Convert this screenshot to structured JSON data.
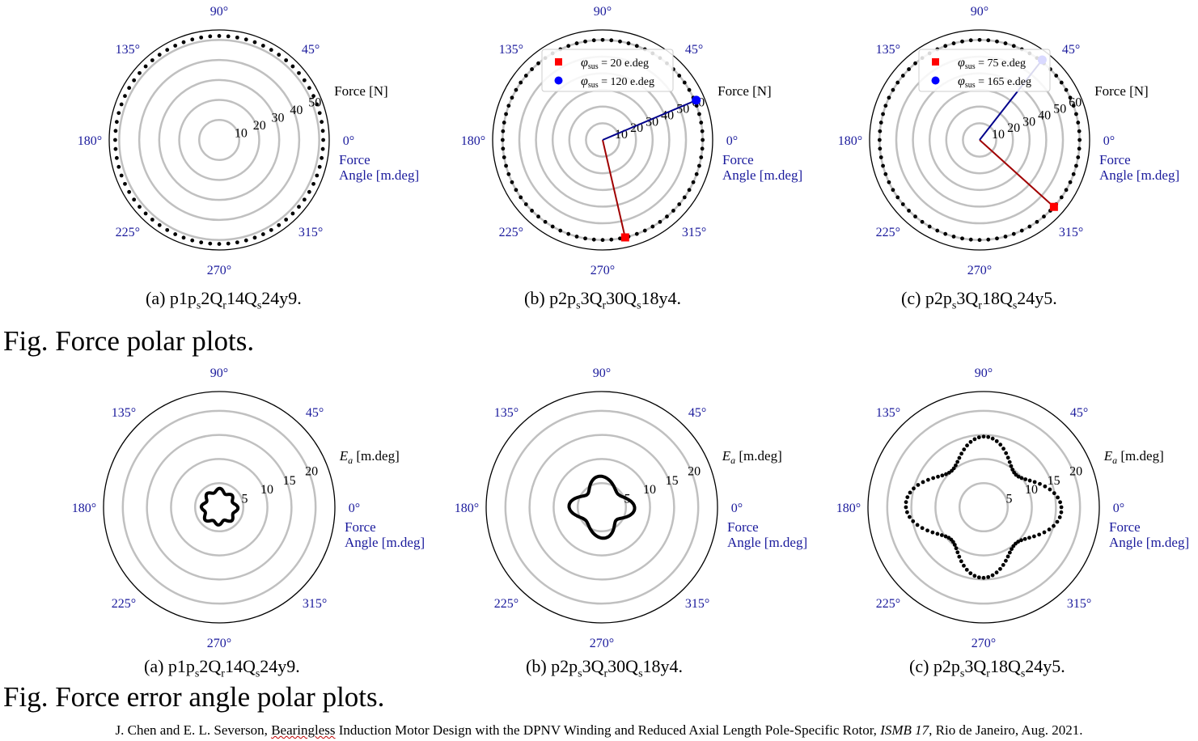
{
  "figure_titles": {
    "force": "Fig. Force polar plots.",
    "error": "Fig. Force error angle polar plots."
  },
  "captions": {
    "a": {
      "prefix": "(a) p1p",
      "sub1": "s",
      "mid1": "2Q",
      "sub2": "r",
      "mid2": "14Q",
      "sub3": "s",
      "tail": "24y9."
    },
    "b": {
      "prefix": "(b) p2p",
      "sub1": "s",
      "mid1": "3Q",
      "sub2": "r",
      "mid2": "30Q",
      "sub3": "s",
      "tail": "18y4."
    },
    "c": {
      "prefix": "(c) p2p",
      "sub1": "s",
      "mid1": "3Q",
      "sub2": "r",
      "mid2": "18Q",
      "sub3": "s",
      "tail": "24y5."
    }
  },
  "credit": {
    "part1": "J. Chen and E. L. Severson, ",
    "underlined": "Bearingless",
    "part2": " Induction Motor Design with the DPNV Winding and Reduced Axial Length Pole-Specific Rotor, ",
    "venue": "ISMB 17",
    "part3": ", Rio de Janeiro, Aug. 2021."
  },
  "colors": {
    "angle_label": "#1a1a9c",
    "grid": "#c0c0c0",
    "points": "#000000",
    "arrow_red": "#a00000",
    "marker_red": "#ff0000",
    "arrow_blue": "#00008b",
    "marker_blue": "#0000ff"
  },
  "chart_data": [
    {
      "type": "scatter",
      "projection": "polar",
      "panel": "force-a",
      "theta_label": [
        "Force",
        "Angle [m.deg]"
      ],
      "r_label": "Force [N]",
      "angle_ticks": [
        "0°",
        "45°",
        "90°",
        "135°",
        "180°",
        "225°",
        "270°",
        "315°"
      ],
      "r_ticks": [
        10,
        20,
        30,
        40,
        50
      ],
      "rlim": [
        0,
        55
      ],
      "r_label_angle_deg": 22.5,
      "grid": true,
      "series": [
        {
          "r_const": 52,
          "n_points": 72,
          "style": "dots"
        }
      ]
    },
    {
      "type": "scatter",
      "projection": "polar",
      "panel": "force-b",
      "theta_label": [
        "Force",
        "Angle [m.deg]"
      ],
      "r_label": "Force [N]",
      "angle_ticks": [
        "0°",
        "45°",
        "90°",
        "135°",
        "180°",
        "225°",
        "270°",
        "315°"
      ],
      "r_ticks": [
        10,
        20,
        30,
        40,
        50,
        60
      ],
      "rlim": [
        0,
        66
      ],
      "r_label_angle_deg": 22.5,
      "grid": true,
      "legend": "upper-center",
      "series": [
        {
          "r_const": 60,
          "n_points": 72,
          "style": "dots"
        }
      ],
      "vectors": [
        {
          "label_symbol": "φ",
          "label_sub": "sus",
          "label_value": "= 20 e.deg",
          "angle_deg": -77,
          "r": 60,
          "marker": "square",
          "color": "red"
        },
        {
          "label_symbol": "φ",
          "label_sub": "sus",
          "label_value": "= 120 e.deg",
          "angle_deg": 23,
          "r": 61,
          "marker": "circle",
          "color": "blue"
        }
      ]
    },
    {
      "type": "scatter",
      "projection": "polar",
      "panel": "force-c",
      "theta_label": [
        "Force",
        "Angle [m.deg]"
      ],
      "r_label": "Force [N]",
      "angle_ticks": [
        "0°",
        "45°",
        "90°",
        "135°",
        "180°",
        "225°",
        "270°",
        "315°"
      ],
      "r_ticks": [
        10,
        20,
        30,
        40,
        50,
        60
      ],
      "rlim": [
        0,
        66
      ],
      "r_label_angle_deg": 22.5,
      "grid": true,
      "legend": "upper-center",
      "series": [
        {
          "r_const": 60,
          "n_points": 72,
          "style": "dots"
        }
      ],
      "vectors": [
        {
          "label_symbol": "φ",
          "label_sub": "sus",
          "label_value": "= 75 e.deg",
          "angle_deg": -42,
          "r": 60,
          "marker": "square",
          "color": "red"
        },
        {
          "label_symbol": "φ",
          "label_sub": "sus",
          "label_value": "= 165 e.deg",
          "angle_deg": 52,
          "r": 61,
          "marker": "circle",
          "color": "blue"
        }
      ]
    },
    {
      "type": "line",
      "projection": "polar",
      "panel": "error-a",
      "theta_label": [
        "Force",
        "Angle [m.deg]"
      ],
      "r_label_symbol": "E",
      "r_label_sub": "a",
      "r_label_unit": " [m.deg]",
      "angle_ticks": [
        "0°",
        "45°",
        "90°",
        "135°",
        "180°",
        "225°",
        "270°",
        "315°"
      ],
      "r_ticks": [
        5,
        10,
        15,
        20
      ],
      "rlim": [
        0,
        24
      ],
      "r_label_angle_deg": 22.5,
      "grid": true,
      "series": [
        {
          "r_base": 3.4,
          "harmonics": [
            [
              8,
              0.4,
              0.3
            ],
            [
              3,
              0.15,
              1.0
            ]
          ],
          "style": "thick-line"
        }
      ]
    },
    {
      "type": "line",
      "projection": "polar",
      "panel": "error-b",
      "theta_label": [
        "Force",
        "Angle [m.deg]"
      ],
      "r_label_symbol": "E",
      "r_label_sub": "a",
      "r_label_unit": " [m.deg]",
      "angle_ticks": [
        "0°",
        "45°",
        "90°",
        "135°",
        "180°",
        "225°",
        "270°",
        "315°"
      ],
      "r_ticks": [
        5,
        10,
        15,
        20
      ],
      "rlim": [
        0,
        24
      ],
      "r_label_angle_deg": 22.5,
      "grid": true,
      "series": [
        {
          "r_base": 5.4,
          "harmonics": [
            [
              4,
              1.2,
              0.0
            ],
            [
              6,
              0.25,
              0.7
            ]
          ],
          "style": "thick-line"
        }
      ]
    },
    {
      "type": "scatter",
      "projection": "polar",
      "panel": "error-c",
      "theta_label": [
        "Force",
        "Angle [m.deg]"
      ],
      "r_label_symbol": "E",
      "r_label_sub": "a",
      "r_label_unit": " [m.deg]",
      "angle_ticks": [
        "0°",
        "45°",
        "90°",
        "135°",
        "180°",
        "225°",
        "270°",
        "315°"
      ],
      "r_ticks": [
        5,
        10,
        15,
        20
      ],
      "rlim": [
        0,
        24
      ],
      "r_label_angle_deg": 22.5,
      "grid": true,
      "series": [
        {
          "r_base": 12.6,
          "harmonics": [
            [
              4,
              2.8,
              0.1
            ],
            [
              2,
              0.8,
              0.4
            ]
          ],
          "n_points": 96,
          "style": "dots"
        }
      ]
    }
  ]
}
